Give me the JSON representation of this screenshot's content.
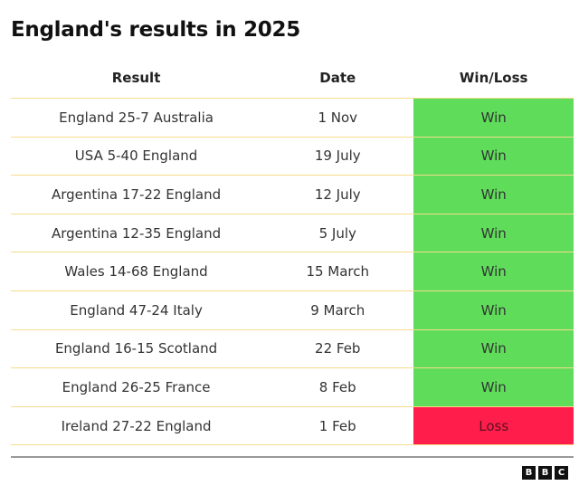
{
  "title": "England's results in 2025",
  "headers": [
    "Result",
    "Date",
    "Win/Loss"
  ],
  "rows": [
    {
      "result": "England 25-7 Australia",
      "date": "1 Nov",
      "outcome": "Win"
    },
    {
      "result": "USA 5-40 England",
      "date": "19 July",
      "outcome": "Win"
    },
    {
      "result": "Argentina 17-22 England",
      "date": "12 July",
      "outcome": "Win"
    },
    {
      "result": "Argentina 12-35 England",
      "date": "5 July",
      "outcome": "Win"
    },
    {
      "result": "Wales 14-68 England",
      "date": "15 March",
      "outcome": "Win"
    },
    {
      "result": "England 47-24 Italy",
      "date": "9 March",
      "outcome": "Win"
    },
    {
      "result": "England 16-15 Scotland",
      "date": "22 Feb",
      "outcome": "Win"
    },
    {
      "result": "England 26-25 France",
      "date": "8 Feb",
      "outcome": "Win"
    },
    {
      "result": "Ireland 27-22 England",
      "date": "1 Feb",
      "outcome": "Loss"
    }
  ],
  "colors": {
    "win": "#5fdd5a",
    "loss": "#ff1e4b",
    "row_border": "#f5dc8c"
  },
  "logo": [
    "B",
    "B",
    "C"
  ]
}
